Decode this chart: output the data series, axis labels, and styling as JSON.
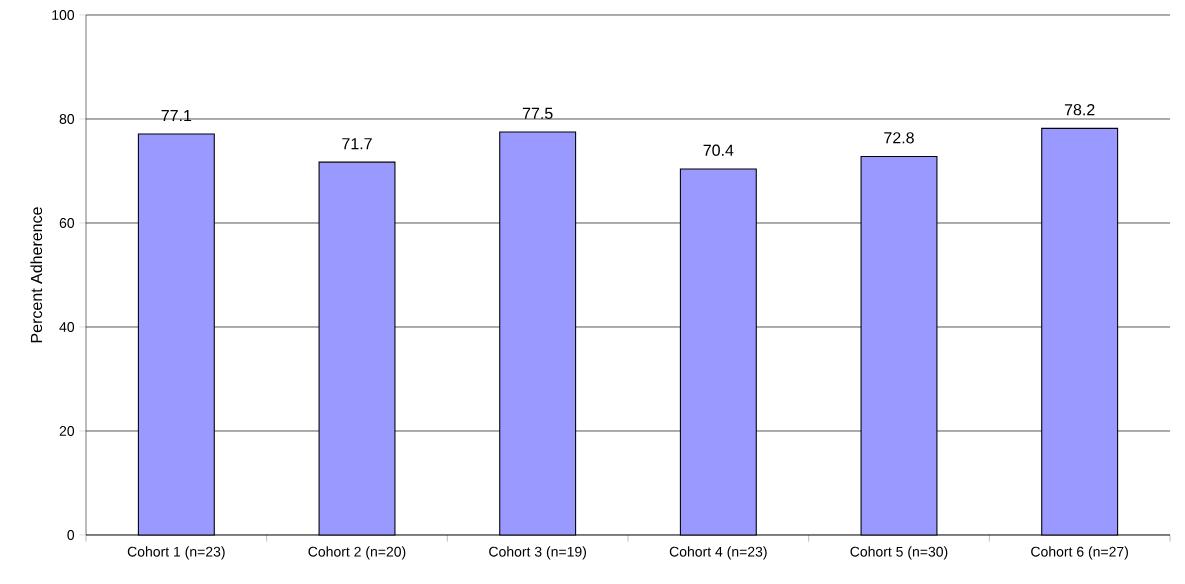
{
  "chart_data": {
    "type": "bar",
    "ylabel": "Percent Adherence",
    "categories": [
      "Cohort 1 (n=23)",
      "Cohort 2 (n=20)",
      "Cohort 3 (n=19)",
      "Cohort 4 (n=23)",
      "Cohort 5 (n=30)",
      "Cohort 6 (n=27)"
    ],
    "values": [
      77.1,
      71.7,
      77.5,
      70.4,
      72.8,
      78.2
    ],
    "color": "#9999ff",
    "ylim": [
      0,
      100
    ],
    "yticks": [
      0,
      20,
      40,
      60,
      80,
      100
    ],
    "grid": "y",
    "data_labels": true
  }
}
